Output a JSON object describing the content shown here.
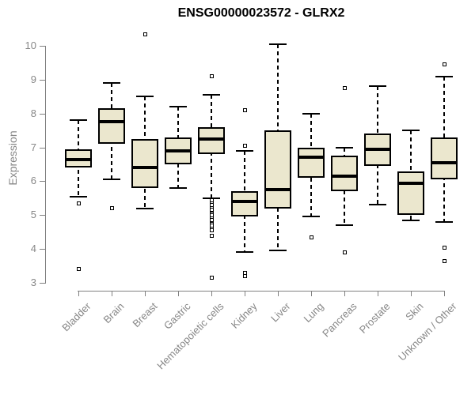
{
  "chart_data": {
    "type": "boxplot",
    "title": "ENSG00000023572 - GLRX2",
    "ylabel": "Expression",
    "xlabel": "",
    "ylim": [
      3,
      10
    ],
    "yticks": [
      3,
      4,
      5,
      6,
      7,
      8,
      9,
      10
    ],
    "grid": "off",
    "legend": "none",
    "categories": [
      "Bladder",
      "Brain",
      "Breast",
      "Gastric",
      "Hematopoietic cells",
      "Kidney",
      "Liver",
      "Lung",
      "Pancreas",
      "Prostate",
      "Skin",
      "Unknown / Other"
    ],
    "series": [
      {
        "name": "Bladder",
        "whisker_low": 5.55,
        "q1": 6.4,
        "median": 6.65,
        "q3": 6.95,
        "whisker_high": 7.8,
        "outliers": [
          5.35,
          3.4
        ]
      },
      {
        "name": "Brain",
        "whisker_low": 6.05,
        "q1": 7.1,
        "median": 7.75,
        "q3": 8.15,
        "whisker_high": 8.9,
        "outliers": [
          5.2
        ]
      },
      {
        "name": "Breast",
        "whisker_low": 5.2,
        "q1": 5.8,
        "median": 6.4,
        "q3": 7.25,
        "whisker_high": 8.5,
        "outliers": [
          10.35
        ]
      },
      {
        "name": "Gastric",
        "whisker_low": 5.8,
        "q1": 6.5,
        "median": 6.9,
        "q3": 7.3,
        "whisker_high": 8.2,
        "outliers": []
      },
      {
        "name": "Hematopoietic cells",
        "whisker_low": 5.5,
        "q1": 6.8,
        "median": 7.25,
        "q3": 7.6,
        "whisker_high": 8.55,
        "outliers": [
          9.1,
          5.45,
          5.35,
          5.3,
          5.2,
          5.15,
          5.05,
          5.0,
          4.9,
          4.85,
          4.75,
          4.7,
          4.6,
          4.55,
          4.4,
          3.15
        ]
      },
      {
        "name": "Kidney",
        "whisker_low": 3.9,
        "q1": 4.95,
        "median": 5.4,
        "q3": 5.7,
        "whisker_high": 6.9,
        "outliers": [
          8.1,
          7.05,
          3.3,
          3.2
        ]
      },
      {
        "name": "Liver",
        "whisker_low": 3.95,
        "q1": 5.2,
        "median": 5.75,
        "q3": 7.5,
        "whisker_high": 10.05,
        "outliers": []
      },
      {
        "name": "Lung",
        "whisker_low": 4.95,
        "q1": 6.1,
        "median": 6.7,
        "q3": 7.0,
        "whisker_high": 8.0,
        "outliers": [
          4.35
        ]
      },
      {
        "name": "Pancreas",
        "whisker_low": 4.7,
        "q1": 5.7,
        "median": 6.15,
        "q3": 6.75,
        "whisker_high": 7.0,
        "outliers": [
          8.75,
          3.9
        ]
      },
      {
        "name": "Prostate",
        "whisker_low": 5.3,
        "q1": 6.45,
        "median": 6.95,
        "q3": 7.4,
        "whisker_high": 8.8,
        "outliers": []
      },
      {
        "name": "Skin",
        "whisker_low": 4.85,
        "q1": 5.0,
        "median": 5.95,
        "q3": 6.3,
        "whisker_high": 7.5,
        "outliers": []
      },
      {
        "name": "Unknown / Other",
        "whisker_low": 4.8,
        "q1": 6.05,
        "median": 6.55,
        "q3": 7.3,
        "whisker_high": 9.1,
        "outliers": [
          9.45,
          4.05,
          3.65
        ]
      }
    ],
    "colors": {
      "box_fill": "#EBE7CE",
      "box_border": "#000000",
      "median": "#000000",
      "whisker": "#000000",
      "axis": "#808080",
      "tick_label": "#878787",
      "title": "#000000",
      "background": "#FFFFFF"
    }
  }
}
